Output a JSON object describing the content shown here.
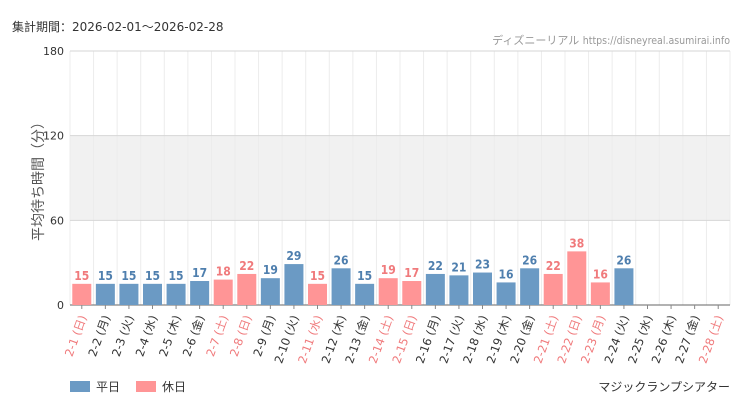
{
  "header": {
    "period_label": "集計期間：",
    "period_value": "2026-02-01～2026-02-28",
    "site_name": "ディズニーリアル",
    "site_url": "https://disneyreal.asumirai.info"
  },
  "colors": {
    "weekday": "#6b9ac4",
    "holiday": "#ff9596",
    "weekday_text": "#4f7fae",
    "holiday_text": "#f07a7c",
    "band": "#f1f1f1"
  },
  "chart_data": {
    "type": "bar",
    "title": "マジックランプシアター",
    "xlabel": "",
    "ylabel": "平均待ち時間（分）",
    "ylim": [
      0,
      180
    ],
    "yticks": [
      "0",
      "60",
      "120",
      "180"
    ],
    "grid": true,
    "legend": {
      "position": "bottom-left",
      "entries": [
        "平日",
        "休日"
      ]
    },
    "categories": [
      "2-1 (日)",
      "2-2 (月)",
      "2-3 (火)",
      "2-4 (水)",
      "2-5 (木)",
      "2-6 (金)",
      "2-7 (土)",
      "2-8 (日)",
      "2-9 (月)",
      "2-10 (火)",
      "2-11 (水)",
      "2-12 (木)",
      "2-13 (金)",
      "2-14 (土)",
      "2-15 (日)",
      "2-16 (月)",
      "2-17 (火)",
      "2-18 (水)",
      "2-19 (木)",
      "2-20 (金)",
      "2-21 (土)",
      "2-22 (日)",
      "2-23 (月)",
      "2-24 (火)",
      "2-25 (水)",
      "2-26 (木)",
      "2-27 (金)",
      "2-28 (土)"
    ],
    "values": [
      15,
      15,
      15,
      15,
      15,
      17,
      18,
      22,
      19,
      29,
      15,
      26,
      15,
      19,
      17,
      22,
      21,
      23,
      16,
      26,
      22,
      38,
      16,
      26,
      null,
      null,
      null,
      null
    ],
    "day_type": [
      "休日",
      "平日",
      "平日",
      "平日",
      "平日",
      "平日",
      "休日",
      "休日",
      "平日",
      "平日",
      "休日",
      "平日",
      "平日",
      "休日",
      "休日",
      "平日",
      "平日",
      "平日",
      "平日",
      "平日",
      "休日",
      "休日",
      "休日",
      "平日",
      "平日",
      "平日",
      "平日",
      "休日"
    ]
  }
}
